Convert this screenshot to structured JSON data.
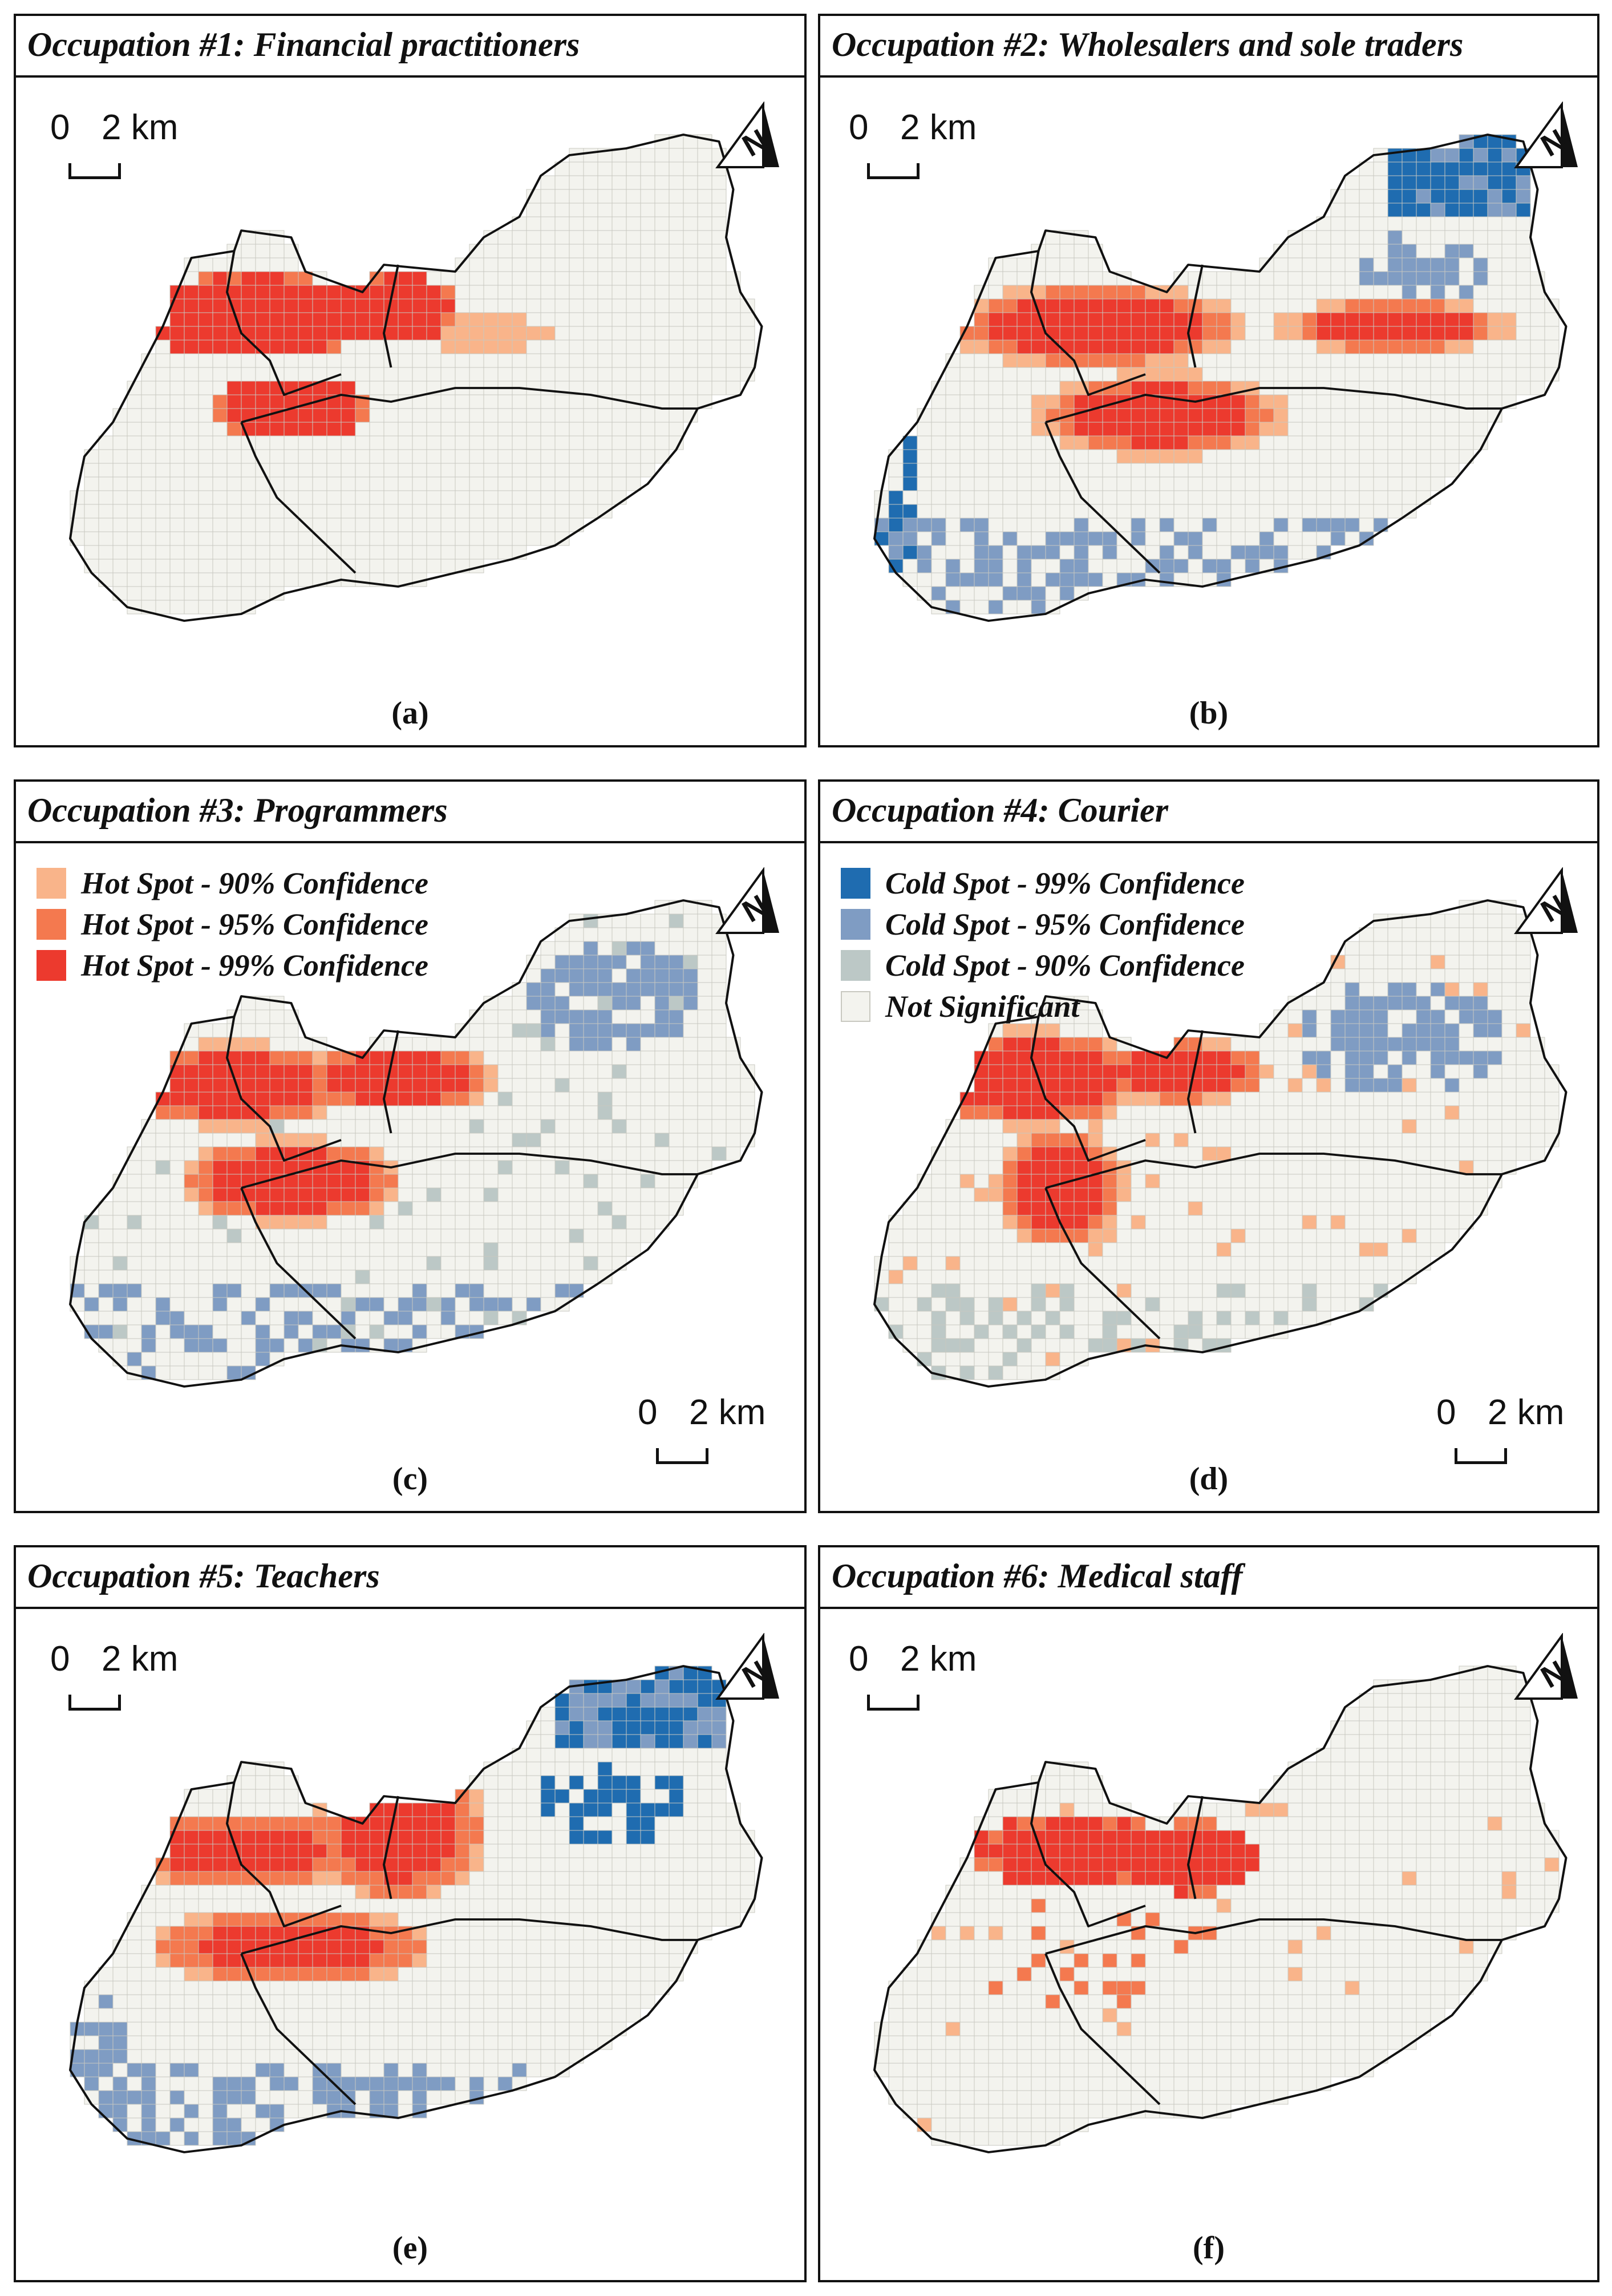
{
  "colors": {
    "background": "#f3f3ee",
    "grid_line": "#c8c8c0",
    "boundary": "#111111",
    "hot_90": "#f9b48a",
    "hot_95": "#f4794f",
    "hot_99": "#ec3a2e",
    "cold_99": "#1f6cb0",
    "cold_95": "#7f9cc3",
    "cold_90": "#bcc8c6",
    "not_significant": "#f3f3ee"
  },
  "panels": [
    {
      "title": "Occupation #1: Financial practitioners",
      "caption": "(a)"
    },
    {
      "title": "Occupation #2: Wholesalers and sole traders",
      "caption": "(b)"
    },
    {
      "title": "Occupation #3: Programmers",
      "caption": "(c)"
    },
    {
      "title": "Occupation #4: Courier",
      "caption": "(d)"
    },
    {
      "title": "Occupation #5: Teachers",
      "caption": "(e)"
    },
    {
      "title": "Occupation #6: Medical staff",
      "caption": "(f)"
    }
  ],
  "scale_bar": {
    "zero": "0",
    "two_km": "2 km"
  },
  "north_arrow": {
    "letter": "N",
    "icon": "north-arrow-icon"
  },
  "legend_hot": [
    {
      "label": "Hot Spot - 90% Confidence",
      "color": "#f9b48a"
    },
    {
      "label": "Hot Spot - 95% Confidence",
      "color": "#f4794f"
    },
    {
      "label": "Hot Spot - 99% Confidence",
      "color": "#ec3a2e"
    }
  ],
  "legend_cold": [
    {
      "label": "Cold Spot - 99% Confidence",
      "color": "#1f6cb0"
    },
    {
      "label": "Cold Spot - 95% Confidence",
      "color": "#7f9cc3"
    },
    {
      "label": "Cold Spot - 90% Confidence",
      "color": "#bcc8c6"
    },
    {
      "label": "Not Significant",
      "color": "#f3f3ee"
    }
  ]
}
